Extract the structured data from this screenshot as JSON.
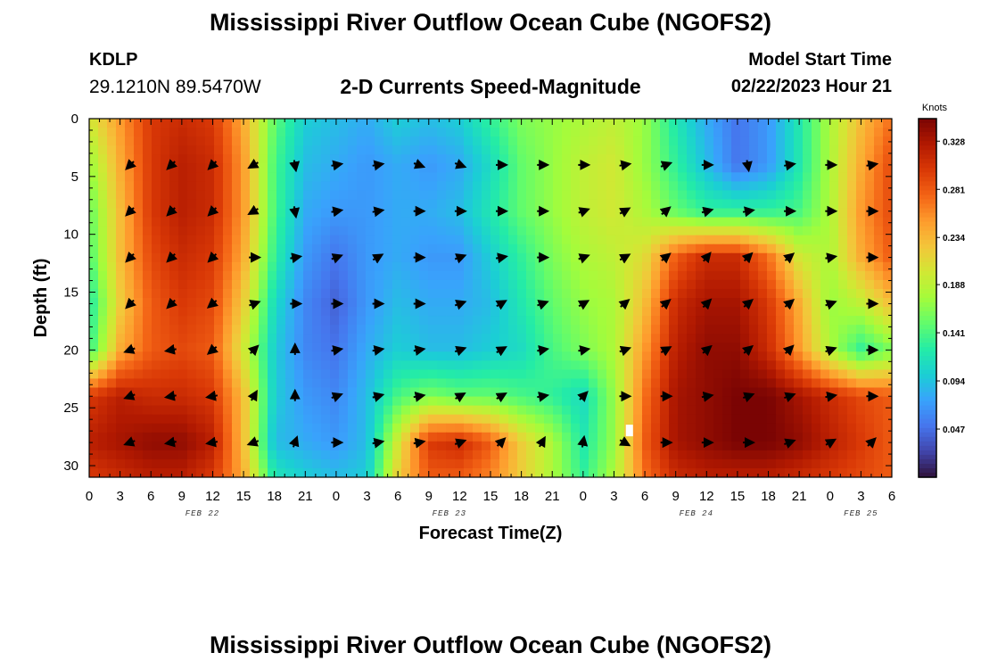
{
  "header": {
    "title": "Mississippi River Outflow Ocean Cube (NGOFS2)",
    "station": "KDLP",
    "coords": "29.1210N  89.5470W",
    "subtitle": "2-D Currents Speed-Magnitude",
    "model_start_label": "Model Start Time",
    "model_start_value": "02/22/2023 Hour 21"
  },
  "footer": {
    "title": "Mississippi River Outflow Ocean Cube (NGOFS2)"
  },
  "chart_data": {
    "type": "heatmap",
    "title": "2-D Currents Speed-Magnitude",
    "xlabel": "Forecast Time(Z)",
    "ylabel": "Depth (ft)",
    "xlim": [
      0,
      78
    ],
    "ylim": [
      31,
      0
    ],
    "x_tick_values": [
      0,
      3,
      6,
      9,
      12,
      15,
      18,
      21,
      24,
      27,
      30,
      33,
      36,
      39,
      42,
      45,
      48,
      51,
      54,
      57,
      60,
      63,
      66,
      69,
      72,
      75,
      78
    ],
    "x_tick_labels": [
      "0",
      "3",
      "6",
      "9",
      "12",
      "15",
      "18",
      "21",
      "0",
      "3",
      "6",
      "9",
      "12",
      "15",
      "18",
      "21",
      "0",
      "3",
      "6",
      "9",
      "12",
      "15",
      "18",
      "21",
      "0",
      "3",
      "6"
    ],
    "y_ticks": [
      0,
      5,
      10,
      15,
      20,
      25,
      30
    ],
    "day_labels": [
      {
        "label": "FEB 22",
        "hour": 11
      },
      {
        "label": "FEB 23",
        "hour": 35
      },
      {
        "label": "FEB 24",
        "hour": 59
      },
      {
        "label": "FEB 25",
        "hour": 75
      }
    ],
    "colorbar": {
      "unit": "Knots",
      "min": 0.0,
      "max": 0.35,
      "ticks": [
        0.328,
        0.281,
        0.234,
        0.188,
        0.141,
        0.094,
        0.047
      ],
      "colors": [
        "#30123b",
        "#4145ab",
        "#4675ed",
        "#39a2fc",
        "#1bcfd4",
        "#24eca6",
        "#61fc6c",
        "#a4fc3b",
        "#d1e834",
        "#f3c63a",
        "#fe9b2d",
        "#f36315",
        "#d93806",
        "#b11901",
        "#7a0403"
      ]
    },
    "speed_grid": {
      "hours": [
        0,
        3,
        6,
        9,
        12,
        15,
        18,
        21,
        24,
        27,
        30,
        33,
        36,
        39,
        42,
        45,
        48,
        51,
        54,
        57,
        60,
        63,
        66,
        69,
        72,
        75,
        78
      ],
      "depths": [
        0,
        4,
        8,
        12,
        16,
        20,
        24,
        28,
        31
      ],
      "values": [
        [
          0.2,
          0.25,
          0.3,
          0.31,
          0.3,
          0.24,
          0.15,
          0.1,
          0.09,
          0.08,
          0.1,
          0.09,
          0.1,
          0.13,
          0.16,
          0.17,
          0.18,
          0.19,
          0.17,
          0.12,
          0.08,
          0.05,
          0.07,
          0.12,
          0.18,
          0.23,
          0.27
        ],
        [
          0.17,
          0.24,
          0.3,
          0.32,
          0.31,
          0.25,
          0.14,
          0.09,
          0.08,
          0.07,
          0.08,
          0.07,
          0.08,
          0.11,
          0.15,
          0.17,
          0.19,
          0.2,
          0.17,
          0.13,
          0.09,
          0.05,
          0.07,
          0.12,
          0.18,
          0.24,
          0.29
        ],
        [
          0.15,
          0.23,
          0.3,
          0.32,
          0.31,
          0.25,
          0.14,
          0.08,
          0.07,
          0.07,
          0.08,
          0.08,
          0.09,
          0.12,
          0.15,
          0.17,
          0.19,
          0.2,
          0.18,
          0.15,
          0.13,
          0.13,
          0.13,
          0.14,
          0.18,
          0.25,
          0.29
        ],
        [
          0.14,
          0.23,
          0.29,
          0.31,
          0.3,
          0.24,
          0.13,
          0.07,
          0.05,
          0.07,
          0.08,
          0.07,
          0.07,
          0.1,
          0.13,
          0.16,
          0.18,
          0.19,
          0.21,
          0.28,
          0.31,
          0.31,
          0.27,
          0.2,
          0.18,
          0.24,
          0.28
        ],
        [
          0.12,
          0.22,
          0.28,
          0.3,
          0.29,
          0.22,
          0.11,
          0.06,
          0.04,
          0.07,
          0.09,
          0.08,
          0.08,
          0.09,
          0.12,
          0.15,
          0.17,
          0.18,
          0.23,
          0.31,
          0.33,
          0.33,
          0.3,
          0.24,
          0.17,
          0.19,
          0.23
        ],
        [
          0.13,
          0.24,
          0.28,
          0.29,
          0.28,
          0.2,
          0.1,
          0.06,
          0.05,
          0.08,
          0.1,
          0.09,
          0.09,
          0.1,
          0.11,
          0.14,
          0.16,
          0.18,
          0.25,
          0.32,
          0.34,
          0.34,
          0.31,
          0.25,
          0.18,
          0.13,
          0.16
        ],
        [
          0.3,
          0.32,
          0.31,
          0.31,
          0.3,
          0.23,
          0.1,
          0.07,
          0.06,
          0.09,
          0.14,
          0.16,
          0.15,
          0.15,
          0.14,
          0.13,
          0.11,
          0.17,
          0.27,
          0.33,
          0.34,
          0.35,
          0.35,
          0.33,
          0.31,
          0.29,
          0.28
        ],
        [
          0.32,
          0.33,
          0.34,
          0.34,
          0.32,
          0.23,
          0.09,
          0.08,
          0.07,
          0.09,
          0.2,
          0.3,
          0.31,
          0.28,
          0.22,
          0.18,
          0.12,
          0.17,
          0.28,
          0.33,
          0.34,
          0.35,
          0.35,
          0.34,
          0.32,
          0.3,
          0.28
        ],
        [
          0.3,
          0.31,
          0.32,
          0.32,
          0.3,
          0.24,
          0.12,
          0.1,
          0.09,
          0.1,
          0.22,
          0.28,
          0.28,
          0.26,
          0.22,
          0.18,
          0.13,
          0.18,
          0.27,
          0.31,
          0.32,
          0.32,
          0.32,
          0.31,
          0.3,
          0.29,
          0.28
        ]
      ]
    },
    "vectors": {
      "hours": [
        4,
        8,
        12,
        16,
        20,
        24,
        28,
        32,
        36,
        40,
        44,
        48,
        52,
        56,
        60,
        64,
        68,
        72,
        76
      ],
      "depths": [
        4,
        8,
        12,
        16,
        20,
        24,
        28
      ],
      "angles_deg": [
        [
          -135,
          -135,
          -135,
          -150,
          -80,
          10,
          10,
          -20,
          -20,
          0,
          0,
          0,
          10,
          20,
          0,
          -80,
          10,
          0,
          10
        ],
        [
          -135,
          -135,
          -135,
          -150,
          -80,
          10,
          10,
          0,
          0,
          0,
          0,
          20,
          30,
          40,
          15,
          10,
          0,
          0,
          0
        ],
        [
          -135,
          -135,
          -135,
          0,
          10,
          20,
          30,
          0,
          20,
          10,
          0,
          20,
          30,
          40,
          50,
          45,
          40,
          10,
          0
        ],
        [
          -135,
          -135,
          -140,
          20,
          0,
          0,
          0,
          0,
          20,
          30,
          20,
          30,
          40,
          40,
          45,
          40,
          40,
          20,
          0
        ],
        [
          -160,
          -170,
          -140,
          45,
          90,
          10,
          10,
          10,
          20,
          30,
          10,
          10,
          20,
          30,
          40,
          40,
          45,
          20,
          0
        ],
        [
          -160,
          -170,
          -170,
          60,
          90,
          20,
          15,
          10,
          30,
          30,
          10,
          45,
          0,
          0,
          10,
          20,
          20,
          10,
          0
        ],
        [
          -160,
          -170,
          -170,
          -160,
          70,
          0,
          10,
          10,
          20,
          45,
          60,
          80,
          -30,
          0,
          0,
          0,
          20,
          30,
          45
        ]
      ]
    },
    "marker": {
      "hour": 52.5,
      "depth": 27
    }
  }
}
